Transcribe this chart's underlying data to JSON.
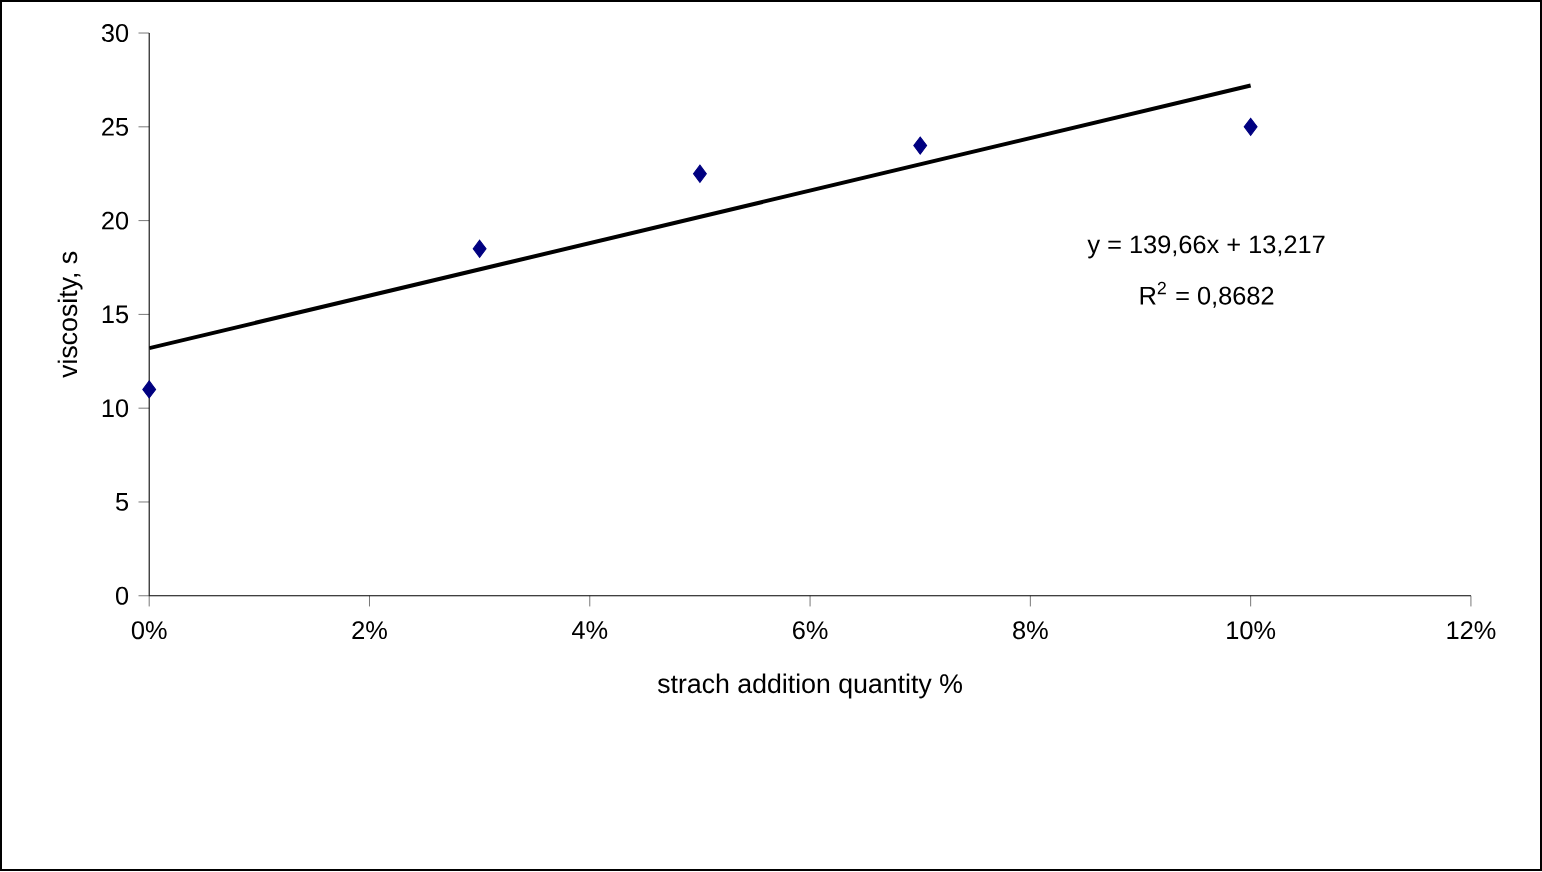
{
  "chart_data": {
    "type": "scatter",
    "xlabel": "strach addition quantity %",
    "ylabel": "viscosity, s",
    "x": [
      0,
      3,
      5,
      7,
      10
    ],
    "series": [
      {
        "color": "#000080",
        "marker": "diamond",
        "values": [
          11,
          18.5,
          22.5,
          24,
          25
        ]
      },
      {
        "type": "line",
        "color": "#000000",
        "marker": "none",
        "x": [
          0,
          10
        ],
        "values": [
          13.2,
          27.2
        ]
      }
    ],
    "xlim": [
      0,
      12
    ],
    "xticks": [
      {
        "value": 0,
        "label": "0%"
      },
      {
        "value": 2,
        "label": "2%"
      },
      {
        "value": 4,
        "label": "4%"
      },
      {
        "value": 6,
        "label": "6%"
      },
      {
        "value": 8,
        "label": "8%"
      },
      {
        "value": 10,
        "label": "10%"
      },
      {
        "value": 12,
        "label": "12%"
      }
    ],
    "ylim": [
      0,
      30
    ],
    "yticks": [
      0,
      5,
      10,
      15,
      20,
      25,
      30
    ],
    "annotations": [
      "y = 139,66x + 13,217",
      "R$^{2}$ = 0,8682"
    ],
    "grid": false
  }
}
